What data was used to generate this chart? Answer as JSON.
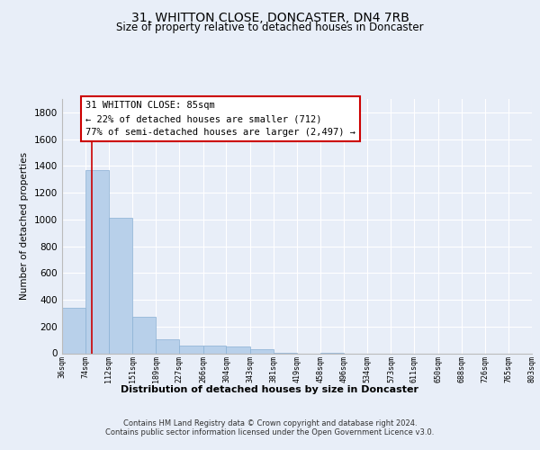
{
  "title": "31, WHITTON CLOSE, DONCASTER, DN4 7RB",
  "subtitle": "Size of property relative to detached houses in Doncaster",
  "xlabel": "Distribution of detached houses by size in Doncaster",
  "ylabel": "Number of detached properties",
  "footnote1": "Contains HM Land Registry data © Crown copyright and database right 2024.",
  "footnote2": "Contains public sector information licensed under the Open Government Licence v3.0.",
  "property_size": 85,
  "property_label": "31 WHITTON CLOSE: 85sqm",
  "annotation_line1": "← 22% of detached houses are smaller (712)",
  "annotation_line2": "77% of semi-detached houses are larger (2,497) →",
  "bar_color": "#b8d0ea",
  "bar_edge_color": "#8ab0d4",
  "vline_color": "#cc0000",
  "annotation_box_color": "#cc0000",
  "bins": [
    36,
    74,
    112,
    151,
    189,
    227,
    266,
    304,
    343,
    381,
    419,
    458,
    496,
    534,
    573,
    611,
    650,
    688,
    726,
    765,
    803
  ],
  "bar_heights": [
    340,
    1370,
    1010,
    275,
    105,
    60,
    55,
    50,
    30,
    5,
    0,
    5,
    0,
    0,
    0,
    0,
    0,
    0,
    0,
    0
  ],
  "ylim": [
    0,
    1900
  ],
  "yticks": [
    0,
    200,
    400,
    600,
    800,
    1000,
    1200,
    1400,
    1600,
    1800
  ],
  "bg_color": "#e8eef8",
  "plot_bg_color": "#e8eef8",
  "grid_color": "#ffffff"
}
